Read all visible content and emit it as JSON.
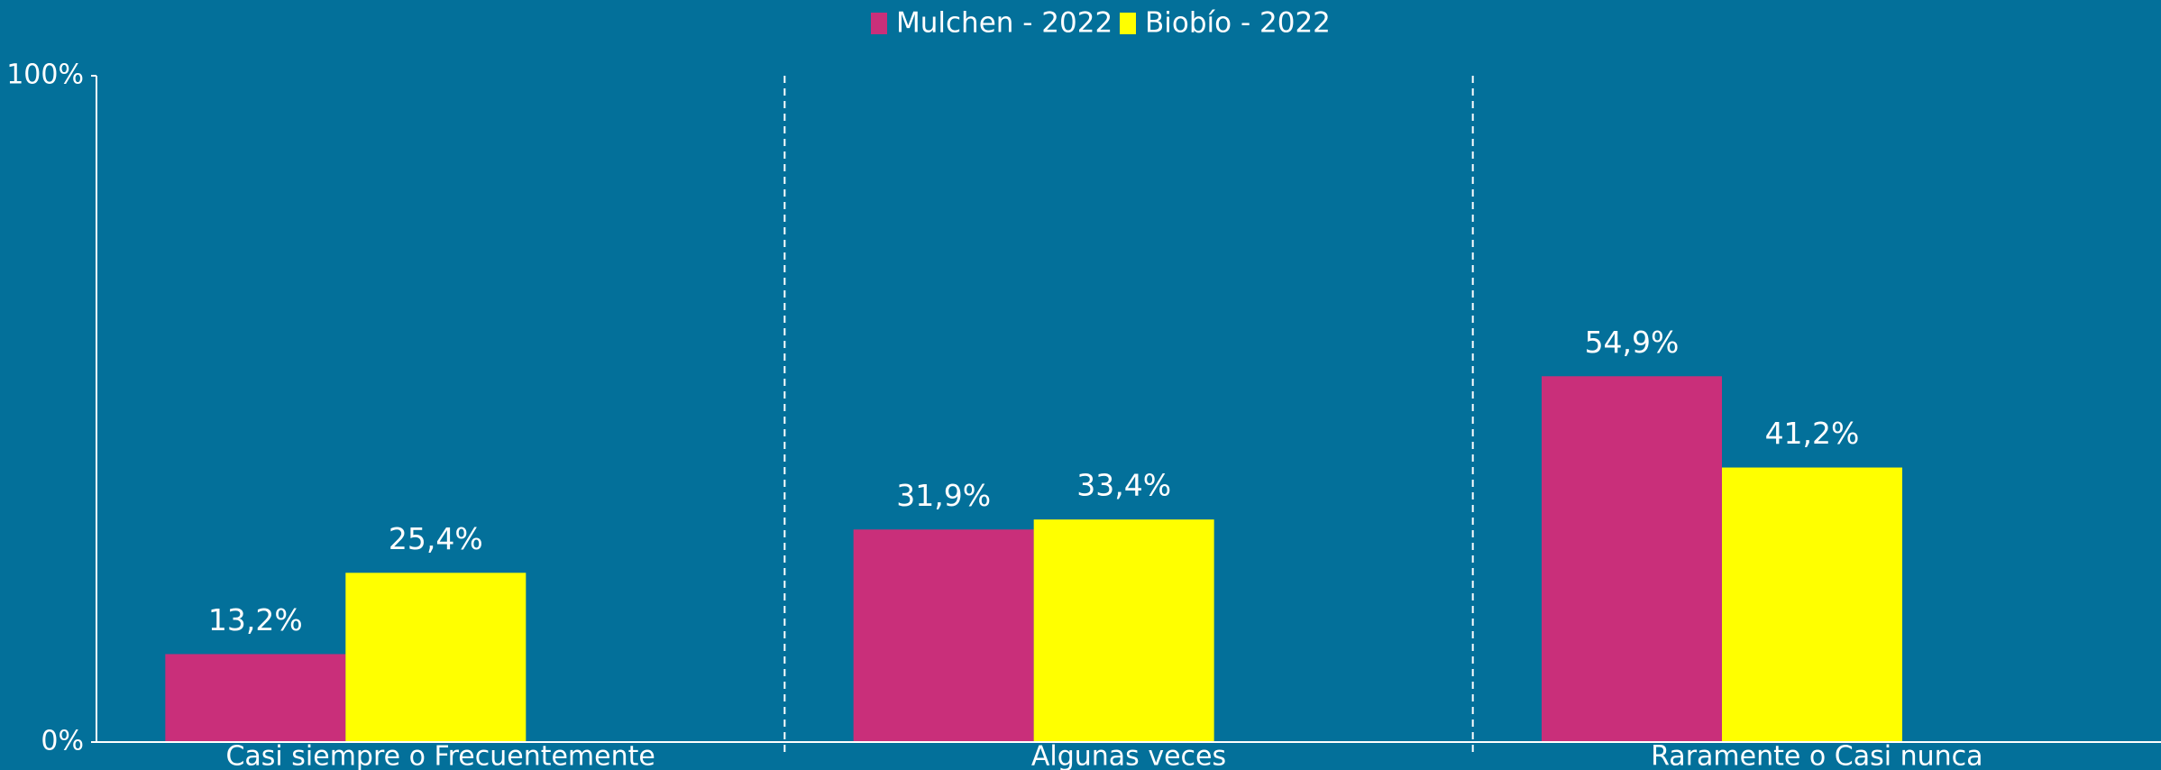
{
  "chart_data": {
    "type": "bar",
    "categories": [
      "Casi siempre o Frecuentemente",
      "Algunas veces",
      "Raramente o Casi nunca"
    ],
    "series": [
      {
        "name": "Mulchen - 2022",
        "color": "#c92f7a",
        "values": [
          13.2,
          31.9,
          54.9
        ],
        "value_labels": [
          "13,2%",
          "31,9%",
          "54,9%"
        ]
      },
      {
        "name": "Biobío - 2022",
        "color": "#ffff00",
        "values": [
          25.4,
          33.4,
          41.2
        ],
        "value_labels": [
          "25,4%",
          "33,4%",
          "41,2%"
        ]
      }
    ],
    "ylim": [
      0,
      100
    ],
    "yticks": [
      {
        "value": 0,
        "label": "0%"
      },
      {
        "value": 100,
        "label": "100%"
      }
    ],
    "grid": false,
    "legend": "top"
  }
}
